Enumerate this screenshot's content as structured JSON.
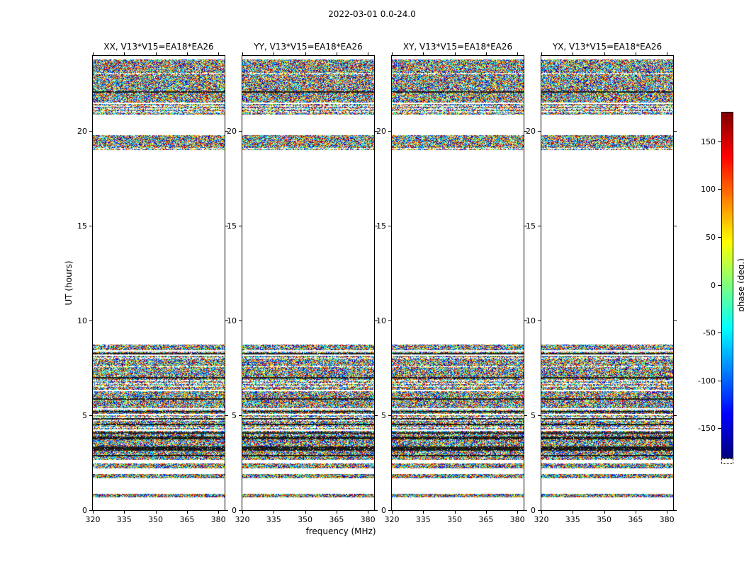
{
  "figure_title": "2022-03-01 0.0-24.0",
  "panels": [
    {
      "pol": "XX",
      "title": "XX, V13*V15=EA18*EA26"
    },
    {
      "pol": "YY",
      "title": "YY, V13*V15=EA18*EA26"
    },
    {
      "pol": "XY",
      "title": "XY, V13*V15=EA18*EA26"
    },
    {
      "pol": "YX",
      "title": "YX, V13*V15=EA18*EA26"
    }
  ],
  "chart_data": {
    "type": "heatmap",
    "title": "2022-03-01 0.0-24.0",
    "xlabel": "frequency (MHz)",
    "ylabel": "UT (hours)",
    "xlim": [
      320,
      383
    ],
    "ylim": [
      0,
      24
    ],
    "x_ticks": [
      320,
      335,
      350,
      365,
      380
    ],
    "y_ticks": [
      0,
      5,
      10,
      15,
      20
    ],
    "panel_polarizations": [
      "XX",
      "YY",
      "XY",
      "YX"
    ],
    "baseline": "V13*V15=EA18*EA26",
    "colorbar": {
      "label": "phase (deg.)",
      "ticks": [
        150,
        100,
        50,
        0,
        -50,
        -100,
        -150
      ],
      "vmin": -180,
      "vmax": 180,
      "colormap": "jet"
    },
    "content_description": "Interferometric visibility phase vs frequency and UT time for four polarization products; uniformly random phase noise fills the observed time ranges (identical band structure in all four panels), white elsewhere where no data was taken.",
    "occupied_ut_bands": [
      [
        0.67,
        0.86
      ],
      [
        1.68,
        1.9
      ],
      [
        2.2,
        2.46
      ],
      [
        2.65,
        8.76
      ],
      [
        19.02,
        19.8
      ],
      [
        20.9,
        23.82
      ]
    ],
    "grid": false
  },
  "colors": {
    "background": "#ffffff",
    "axes": "#000000",
    "text": "#000000"
  }
}
